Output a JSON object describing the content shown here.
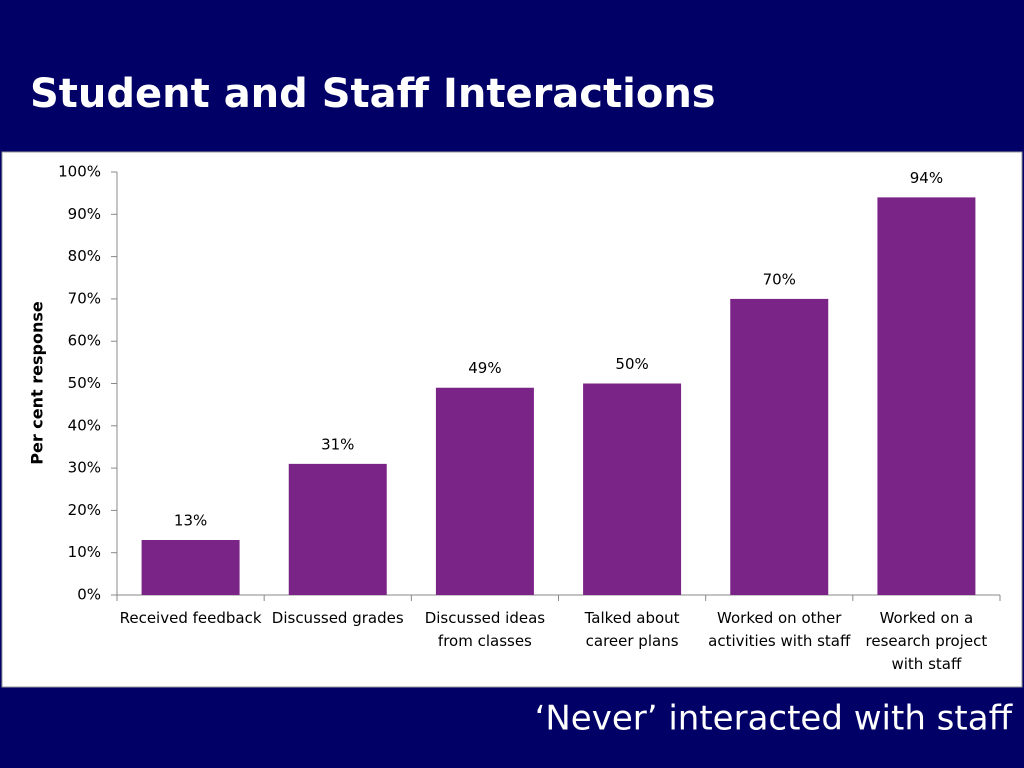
{
  "chart_data": {
    "type": "bar",
    "title": "Student and Staff Interactions",
    "annotation": "‘Never’ interacted with staff",
    "ylabel": "Per cent response",
    "categories": [
      "Received feedback",
      "Discussed grades",
      "Discussed ideas from classes",
      "Talked about career plans",
      "Worked on other activities with staff",
      "Worked on a research project with staff"
    ],
    "values": [
      13,
      31,
      49,
      50,
      70,
      94
    ],
    "value_labels": [
      "13%",
      "31%",
      "49%",
      "50%",
      "70%",
      "94%"
    ],
    "color": "#7b2487",
    "ylim": [
      0,
      100
    ],
    "yticks": [
      {
        "value": 0,
        "label": "0%"
      },
      {
        "value": 10,
        "label": "10%"
      },
      {
        "value": 20,
        "label": "20%"
      },
      {
        "value": 30,
        "label": "30%"
      },
      {
        "value": 40,
        "label": "40%"
      },
      {
        "value": 50,
        "label": "50%"
      },
      {
        "value": 60,
        "label": "60%"
      },
      {
        "value": 70,
        "label": "70%"
      },
      {
        "value": 80,
        "label": "80%"
      },
      {
        "value": 90,
        "label": "90%"
      },
      {
        "value": 100,
        "label": "100%"
      }
    ],
    "grid": false
  }
}
